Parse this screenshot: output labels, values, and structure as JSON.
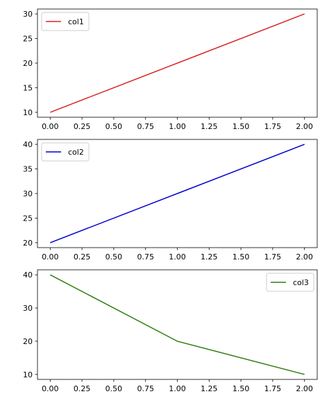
{
  "chart_data": [
    {
      "type": "line",
      "x": [
        0,
        1,
        2
      ],
      "series": [
        {
          "name": "col1",
          "values": [
            10,
            20,
            30
          ],
          "color": "#d62728"
        }
      ],
      "xticks": [
        0.0,
        0.25,
        0.5,
        0.75,
        1.0,
        1.25,
        1.5,
        1.75,
        2.0
      ],
      "xtick_labels": [
        "0.00",
        "0.25",
        "0.50",
        "0.75",
        "1.00",
        "1.25",
        "1.50",
        "1.75",
        "2.00"
      ],
      "yticks": [
        10,
        15,
        20,
        25,
        30
      ],
      "ytick_labels": [
        "10",
        "15",
        "20",
        "25",
        "30"
      ],
      "xlim": [
        -0.1,
        2.1
      ],
      "ylim": [
        9,
        31
      ],
      "legend_position": "upper left",
      "grid": false
    },
    {
      "type": "line",
      "x": [
        0,
        1,
        2
      ],
      "series": [
        {
          "name": "col2",
          "values": [
            20,
            30,
            40
          ],
          "color": "#0000cc"
        }
      ],
      "xticks": [
        0.0,
        0.25,
        0.5,
        0.75,
        1.0,
        1.25,
        1.5,
        1.75,
        2.0
      ],
      "xtick_labels": [
        "0.00",
        "0.25",
        "0.50",
        "0.75",
        "1.00",
        "1.25",
        "1.50",
        "1.75",
        "2.00"
      ],
      "yticks": [
        20,
        25,
        30,
        35,
        40
      ],
      "ytick_labels": [
        "20",
        "25",
        "30",
        "35",
        "40"
      ],
      "xlim": [
        -0.1,
        2.1
      ],
      "ylim": [
        19,
        41
      ],
      "legend_position": "upper left",
      "grid": false
    },
    {
      "type": "line",
      "x": [
        0,
        1,
        2
      ],
      "series": [
        {
          "name": "col3",
          "values": [
            40,
            20,
            10
          ],
          "color": "#2e7d10"
        }
      ],
      "xticks": [
        0.0,
        0.25,
        0.5,
        0.75,
        1.0,
        1.25,
        1.5,
        1.75,
        2.0
      ],
      "xtick_labels": [
        "0.00",
        "0.25",
        "0.50",
        "0.75",
        "1.00",
        "1.25",
        "1.50",
        "1.75",
        "2.00"
      ],
      "yticks": [
        10,
        20,
        30,
        40
      ],
      "ytick_labels": [
        "10",
        "20",
        "30",
        "40"
      ],
      "xlim": [
        -0.1,
        2.1
      ],
      "ylim": [
        8.5,
        41.5
      ],
      "legend_position": "upper right",
      "grid": false
    }
  ]
}
